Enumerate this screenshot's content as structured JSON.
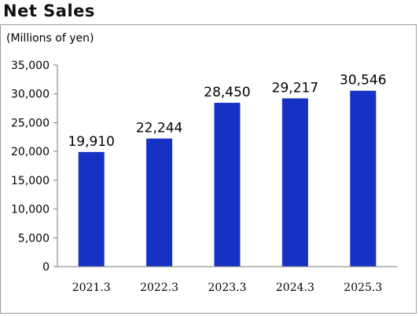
{
  "header": {
    "title": "Net Sales"
  },
  "chart_data": {
    "type": "bar",
    "title": "Net Sales",
    "unit_label": "(Millions of yen)",
    "categories": [
      "2021.3",
      "2022.3",
      "2023.3",
      "2024.3",
      "2025.3"
    ],
    "values": [
      19910,
      22244,
      28450,
      29217,
      30546
    ],
    "data_labels": [
      "19,910",
      "22,244",
      "28,450",
      "29,217",
      "30,546"
    ],
    "ylim": [
      0,
      35000
    ],
    "yticks": [
      "0",
      "5,000",
      "10,000",
      "15,000",
      "20,000",
      "25,000",
      "30,000",
      "35,000"
    ],
    "bar_color": "#1532c4",
    "grid": false
  }
}
